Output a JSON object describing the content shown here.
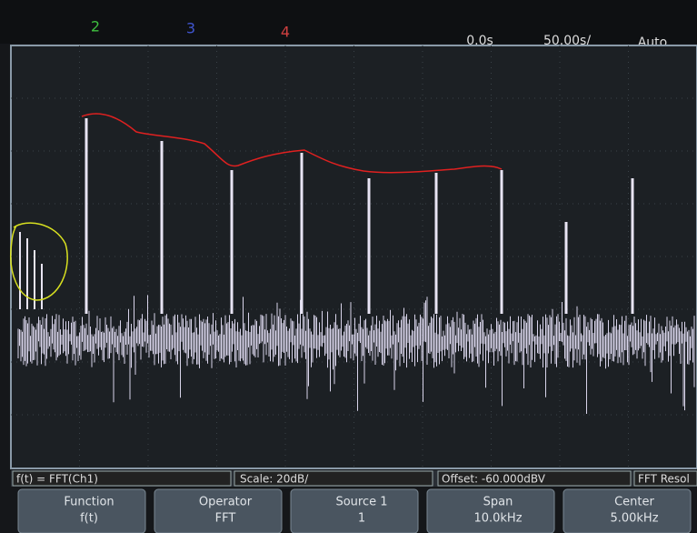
{
  "top_bar": {
    "channels": [
      "2",
      "3",
      "4"
    ],
    "time_offset": "0.0s",
    "time_scale": "50.00s/",
    "trigger_mode": "Auto"
  },
  "status_bar": {
    "function": "f(t) = FFT(Ch1)",
    "scale": "Scale: 20dB/",
    "offset": "Offset: -60.000dBV",
    "resolution": "FFT Resol"
  },
  "softkeys": [
    {
      "label": "Function",
      "value": "f(t)"
    },
    {
      "label": "Operator",
      "value": "FFT"
    },
    {
      "label": "Source 1",
      "value": "1"
    },
    {
      "label": "Span",
      "value": "10.0kHz"
    },
    {
      "label": "Center",
      "value": "5.00kHz"
    }
  ]
}
